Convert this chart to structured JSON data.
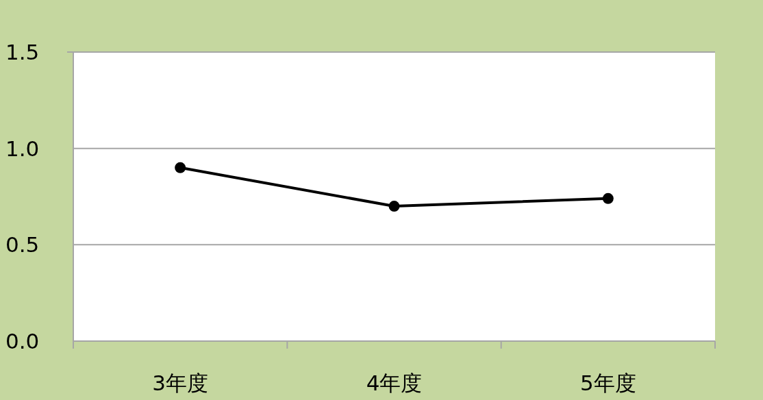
{
  "chart_data": {
    "type": "line",
    "categories": [
      "3年度",
      "4年度",
      "5年度"
    ],
    "values": [
      0.9,
      0.7,
      0.74
    ],
    "color": "#000000",
    "marker": "circle",
    "ylim": [
      0,
      1.5
    ],
    "yticks": [
      {
        "value": 0,
        "label": "0.0"
      },
      0.5,
      {
        "value": 1,
        "label": "1.0"
      },
      1.5
    ],
    "grid": "y"
  }
}
